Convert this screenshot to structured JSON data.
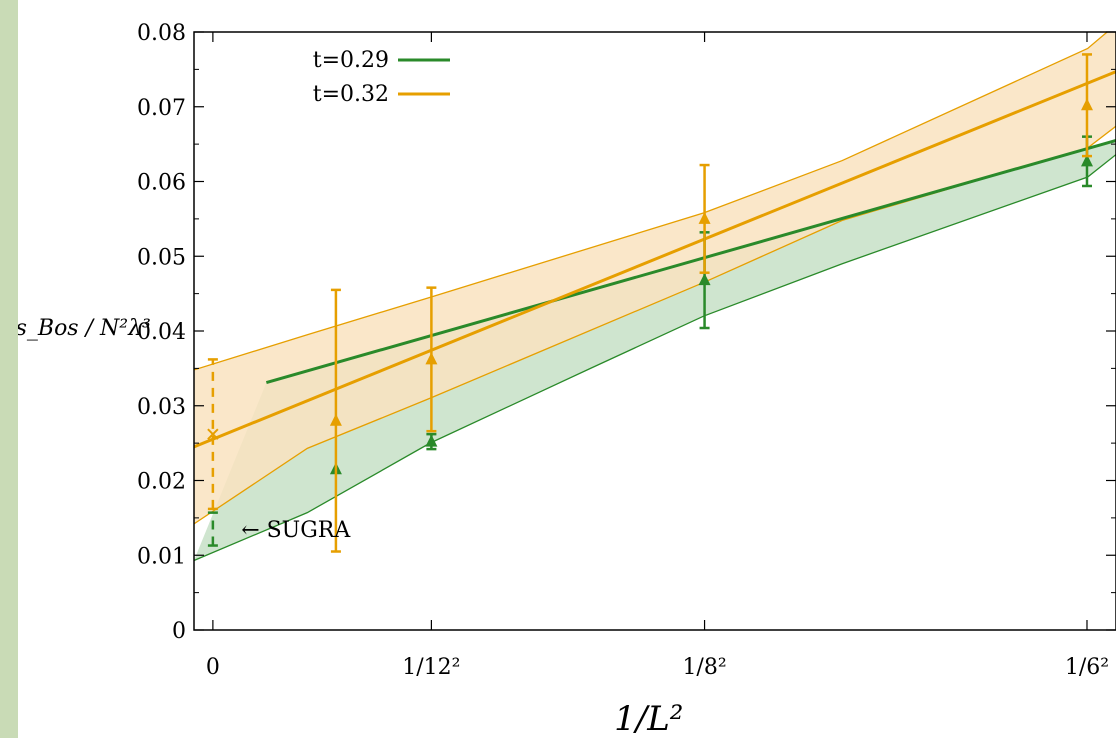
{
  "chart_data": {
    "type": "line",
    "title": "",
    "xlabel": "1/L²",
    "ylabel": "−s_Bos / N²λ³",
    "xlim": [
      -0.0006,
      0.0287
    ],
    "ylim": [
      0,
      0.08
    ],
    "x_ticks": [
      {
        "value": 0,
        "label": "0"
      },
      {
        "value": 0.006944,
        "label": "1/12²"
      },
      {
        "value": 0.015625,
        "label": "1/8²"
      },
      {
        "value": 0.027778,
        "label": "1/6²"
      }
    ],
    "y_ticks": [
      {
        "value": 0,
        "label": "0"
      },
      {
        "value": 0.01,
        "label": "0.01"
      },
      {
        "value": 0.02,
        "label": "0.02"
      },
      {
        "value": 0.03,
        "label": "0.03"
      },
      {
        "value": 0.04,
        "label": "0.04"
      },
      {
        "value": 0.05,
        "label": "0.05"
      },
      {
        "value": 0.06,
        "label": "0.06"
      },
      {
        "value": 0.07,
        "label": "0.07"
      },
      {
        "value": 0.08,
        "label": "0.08"
      }
    ],
    "grid": false,
    "legend_position": "top-left",
    "series": [
      {
        "name": "t=0.29",
        "color": "#2a8a2a",
        "band_color": "#cfe5cf",
        "fit": {
          "x": [
            0.0017,
            0.0287
          ],
          "y": [
            0.0331,
            0.0655
          ]
        },
        "band_upper": {
          "x": [
            0.0017,
            0.0287
          ],
          "y": [
            0.0331,
            0.0655
          ]
        },
        "band_lower": {
          "x": [
            -0.0006,
            0.003,
            0.0069,
            0.012,
            0.0156,
            0.02,
            0.0278,
            0.0287
          ],
          "y": [
            0.0093,
            0.0157,
            0.025,
            0.035,
            0.042,
            0.049,
            0.0606,
            0.0636
          ]
        },
        "points": [
          {
            "x": 0.00391,
            "y": 0.0215,
            "err": 0
          },
          {
            "x": 0.006944,
            "y": 0.0252,
            "err": 0.001
          },
          {
            "x": 0.015625,
            "y": 0.0468,
            "err": 0.0064
          },
          {
            "x": 0.027778,
            "y": 0.0627,
            "err": 0.0033
          }
        ],
        "extrapolated": {
          "x": 0,
          "y": 0.0135,
          "err": 0.0022
        }
      },
      {
        "name": "t=0.32",
        "color": "#e69f00",
        "band_color": "#f9e3bf",
        "fit": {
          "x": [
            -0.0006,
            0.0287
          ],
          "y": [
            0.0245,
            0.0747
          ]
        },
        "band_upper": {
          "x": [
            -0.0006,
            0.003,
            0.0069,
            0.0156,
            0.02,
            0.0278,
            0.0287
          ],
          "y": [
            0.0348,
            0.0395,
            0.0445,
            0.0558,
            0.0628,
            0.0778,
            0.081
          ]
        },
        "band_lower": {
          "x": [
            -0.0006,
            0.003,
            0.0069,
            0.0156,
            0.02,
            0.0278,
            0.0287
          ],
          "y": [
            0.0142,
            0.0243,
            0.031,
            0.0465,
            0.0548,
            0.0645,
            0.0674
          ]
        },
        "points": [
          {
            "x": 0.00391,
            "y": 0.028,
            "err": 0.0175
          },
          {
            "x": 0.006944,
            "y": 0.0362,
            "err": 0.0096
          },
          {
            "x": 0.015625,
            "y": 0.055,
            "err": 0.0072
          },
          {
            "x": 0.027778,
            "y": 0.0702,
            "err": 0.0068
          }
        ],
        "extrapolated": {
          "x": 0,
          "y": 0.0262,
          "err": 0.01
        }
      }
    ],
    "annotations": [
      {
        "text": "← SUGRA",
        "x": 0.0009,
        "y": 0.0135
      }
    ]
  }
}
